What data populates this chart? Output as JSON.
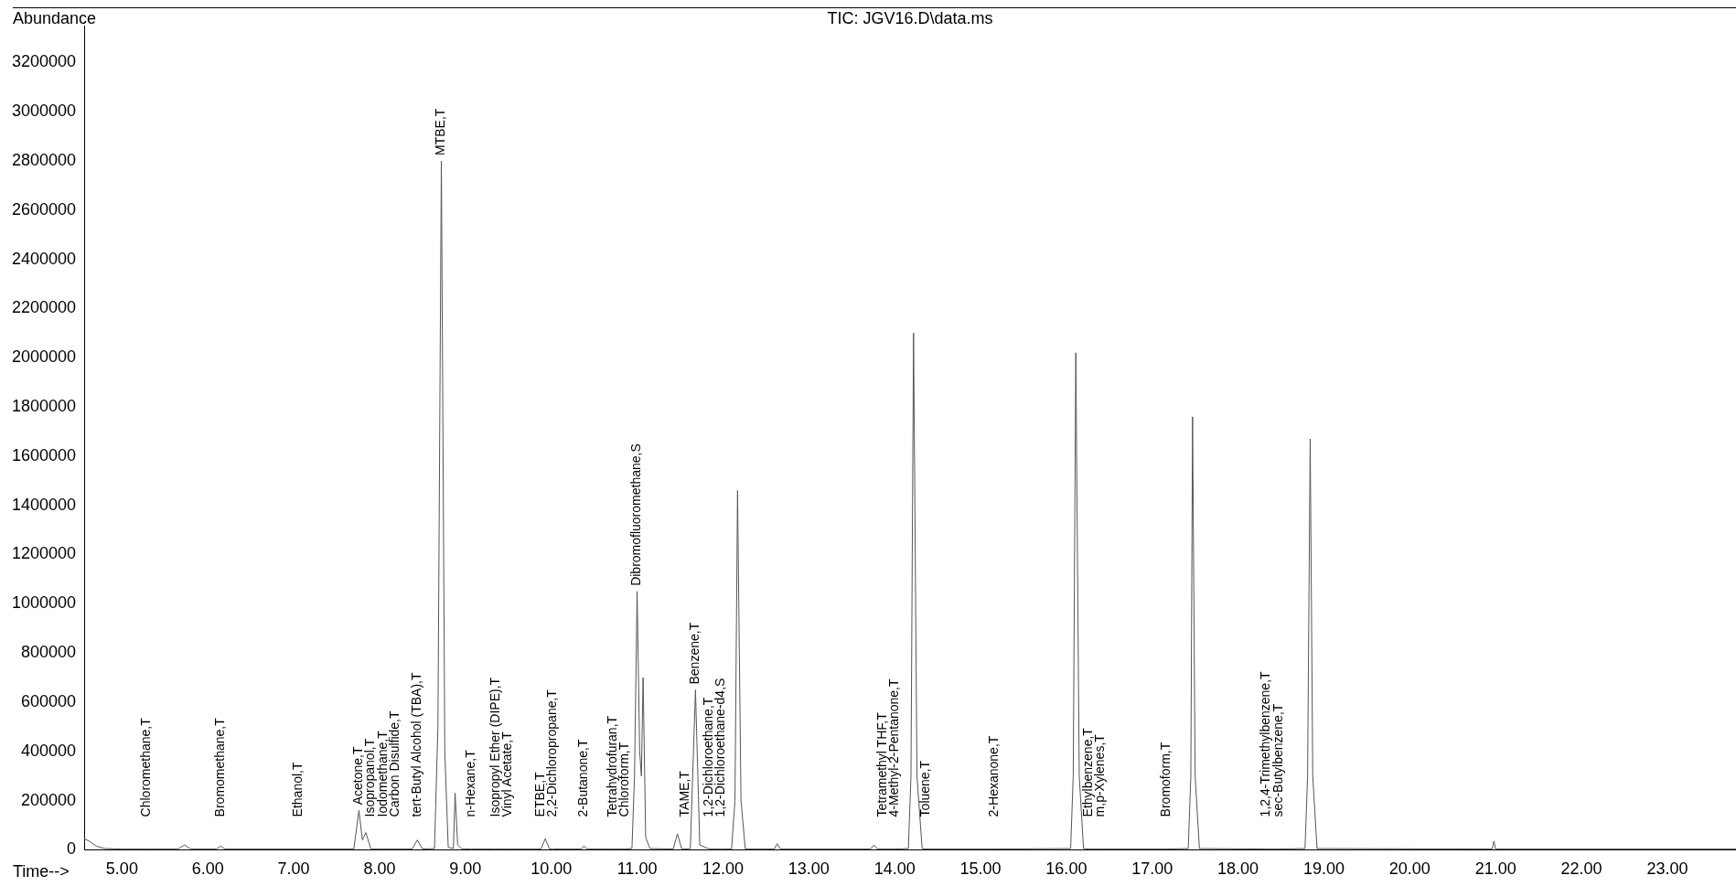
{
  "chart_data": {
    "type": "line",
    "title": "TIC: JGV16.D\\data.ms",
    "xlabel": "Time-->",
    "ylabel": "Abundance",
    "color": "#555555",
    "marker": "none",
    "line_style": "solid",
    "x": [
      4.56,
      4.62,
      4.7,
      4.8,
      5.0,
      5.28,
      5.65,
      5.73,
      5.8,
      6.1,
      6.15,
      6.2,
      7.05,
      7.7,
      7.76,
      7.8,
      7.84,
      7.9,
      8.04,
      8.18,
      8.38,
      8.44,
      8.5,
      8.64,
      8.68,
      8.72,
      8.76,
      8.8,
      8.86,
      8.88,
      8.91,
      8.96,
      9.07,
      9.35,
      9.49,
      9.88,
      9.93,
      9.98,
      10.02,
      10.35,
      10.38,
      10.42,
      10.72,
      10.86,
      10.94,
      10.97,
      11.0,
      11.03,
      11.05,
      11.07,
      11.1,
      11.15,
      11.42,
      11.47,
      11.52,
      11.56,
      11.62,
      11.68,
      11.73,
      11.84,
      11.98,
      12.1,
      12.14,
      12.17,
      12.21,
      12.26,
      12.6,
      12.63,
      12.67,
      13.72,
      13.76,
      13.8,
      13.86,
      14.0,
      14.16,
      14.19,
      14.22,
      14.26,
      14.32,
      14.36,
      15.16,
      16.05,
      16.08,
      16.11,
      16.15,
      16.2,
      16.26,
      16.4,
      17.16,
      17.42,
      17.45,
      17.47,
      17.5,
      17.55,
      18.33,
      18.47,
      18.78,
      18.81,
      18.84,
      18.87,
      18.92,
      20.96,
      20.98,
      21.0,
      23.8
    ],
    "values": [
      45000,
      35000,
      15000,
      5000,
      3000,
      3000,
      3000,
      20000,
      3000,
      3000,
      15000,
      3000,
      3000,
      3000,
      160000,
      40000,
      70000,
      3000,
      3000,
      3000,
      3000,
      40000,
      3000,
      5000,
      500000,
      2800000,
      400000,
      10000,
      5000,
      230000,
      20000,
      3000,
      3000,
      3000,
      3000,
      3000,
      45000,
      3000,
      3000,
      3000,
      15000,
      3000,
      3000,
      3000,
      5000,
      300000,
      1050000,
      400000,
      300000,
      700000,
      50000,
      5000,
      3000,
      65000,
      3000,
      3000,
      5000,
      650000,
      20000,
      3000,
      3000,
      3000,
      200000,
      1460000,
      200000,
      3000,
      3000,
      25000,
      3000,
      3000,
      20000,
      3000,
      3000,
      3000,
      5000,
      300000,
      2100000,
      300000,
      5000,
      3000,
      3000,
      5000,
      300000,
      2020000,
      300000,
      5000,
      3000,
      3000,
      3000,
      5000,
      300000,
      1760000,
      300000,
      5000,
      3000,
      3000,
      5000,
      300000,
      1670000,
      300000,
      5000,
      3000,
      35000,
      3000,
      3000
    ],
    "xlim": [
      4.56,
      23.8
    ],
    "ylim": [
      0,
      3350000
    ],
    "xticks": [
      {
        "value": 5,
        "label": "5.00"
      },
      {
        "value": 6,
        "label": "6.00"
      },
      {
        "value": 7,
        "label": "7.00"
      },
      {
        "value": 8,
        "label": "8.00"
      },
      {
        "value": 9,
        "label": "9.00"
      },
      {
        "value": 10,
        "label": "10.00"
      },
      {
        "value": 11,
        "label": "11.00"
      },
      {
        "value": 12,
        "label": "12.00"
      },
      {
        "value": 13,
        "label": "13.00"
      },
      {
        "value": 14,
        "label": "14.00"
      },
      {
        "value": 15,
        "label": "15.00"
      },
      {
        "value": 16,
        "label": "16.00"
      },
      {
        "value": 17,
        "label": "17.00"
      },
      {
        "value": 18,
        "label": "18.00"
      },
      {
        "value": 19,
        "label": "19.00"
      },
      {
        "value": 20,
        "label": "20.00"
      },
      {
        "value": 21,
        "label": "21.00"
      },
      {
        "value": 22,
        "label": "22.00"
      },
      {
        "value": 23,
        "label": "23.00"
      }
    ],
    "yticks": [
      0,
      200000,
      400000,
      600000,
      800000,
      1000000,
      1200000,
      1400000,
      1600000,
      1800000,
      2000000,
      2200000,
      2400000,
      2600000,
      2800000,
      3000000,
      3200000
    ],
    "annotations": [
      {
        "text": "Chloromethane,T",
        "x": 5.28,
        "y": 3000
      },
      {
        "text": "Bromomethane,T",
        "x": 6.15,
        "y": 15000
      },
      {
        "text": "Ethanol,T",
        "x": 7.05,
        "y": 3000
      },
      {
        "text": "Acetone,T",
        "x": 7.76,
        "y": 160000
      },
      {
        "text": "Isopropanol,T",
        "x": 7.9,
        "y": 3000
      },
      {
        "text": "Iodomethane,T",
        "x": 8.04,
        "y": 3000
      },
      {
        "text": "Carbon Disulfide,T",
        "x": 8.18,
        "y": 3000
      },
      {
        "text": "tert-Butyl Alcohol (TBA),T",
        "x": 8.44,
        "y": 40000
      },
      {
        "text": "MTBE,T",
        "x": 8.72,
        "y": 2800000
      },
      {
        "text": "n-Hexane,T",
        "x": 9.07,
        "y": 3000
      },
      {
        "text": "Isopropyl Ether (DIPE),T",
        "x": 9.35,
        "y": 3000
      },
      {
        "text": "Vinyl Acetate,T",
        "x": 9.49,
        "y": 3000
      },
      {
        "text": "ETBE,T",
        "x": 9.88,
        "y": 3000
      },
      {
        "text": "2,2-Dichloropropane,T",
        "x": 10.02,
        "y": 3000
      },
      {
        "text": "2-Butanone,T",
        "x": 10.38,
        "y": 15000
      },
      {
        "text": "Tetrahydrofuran,T",
        "x": 10.72,
        "y": 3000
      },
      {
        "text": "Chloroform,T",
        "x": 10.86,
        "y": 3000
      },
      {
        "text": "Dibromofluoromethane,S",
        "x": 11.0,
        "y": 1050000
      },
      {
        "text": "TAME,T",
        "x": 11.56,
        "y": 3000
      },
      {
        "text": "Benzene,T",
        "x": 11.68,
        "y": 650000
      },
      {
        "text": "1,2-Dichloroethane,T",
        "x": 11.84,
        "y": 3000
      },
      {
        "text": "1,2-Dichloroethane-d4,S",
        "x": 11.98,
        "y": 3000
      },
      {
        "text": "Tetramethyl THF,T",
        "x": 13.86,
        "y": 3000
      },
      {
        "text": "4-Methyl-2-Pentanone,T",
        "x": 14.0,
        "y": 3000
      },
      {
        "text": "Toluene,T",
        "x": 14.36,
        "y": 3000
      },
      {
        "text": "2-Hexanone,T",
        "x": 15.16,
        "y": 3000
      },
      {
        "text": "Ethylbenzene,T",
        "x": 16.26,
        "y": 3000
      },
      {
        "text": "m,p-Xylenes,T",
        "x": 16.4,
        "y": 3000
      },
      {
        "text": "Bromoform,T",
        "x": 17.16,
        "y": 3000
      },
      {
        "text": "1,2,4-Trimethylbenzene,T",
        "x": 18.33,
        "y": 3000
      },
      {
        "text": "sec-Butylbenzene,T",
        "x": 18.47,
        "y": 3000
      }
    ]
  }
}
